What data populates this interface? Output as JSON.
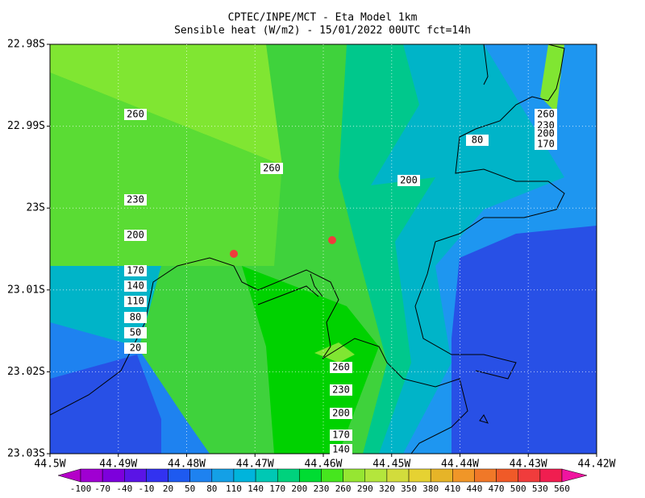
{
  "title": {
    "line1": "CPTEC/INPE/MCT -  Eta Model 1km",
    "line2": "Sensible heat (W/m2) - 15/01/2022 00UTC fct=14h"
  },
  "lat_ticks": [
    "22.98S",
    "22.99S",
    "23S",
    "23.01S",
    "23.02S",
    "23.03S"
  ],
  "lon_ticks": [
    "44.5W",
    "44.49W",
    "44.48W",
    "44.47W",
    "44.46W",
    "44.45W",
    "44.44W",
    "44.43W",
    "44.42W"
  ],
  "contour_labels": [
    "260",
    "260",
    "230",
    "200",
    "170",
    "140",
    "110",
    "80",
    "50",
    "20",
    "200",
    "80",
    "260",
    "230",
    "200",
    "170",
    "260",
    "230",
    "200",
    "170",
    "140"
  ],
  "colorbar": {
    "levels": [
      -100,
      -70,
      -40,
      -10,
      20,
      50,
      80,
      110,
      140,
      170,
      200,
      230,
      260,
      290,
      320,
      350,
      380,
      410,
      440,
      470,
      500,
      530,
      560
    ],
    "colors": [
      "#b400c8",
      "#a000d2",
      "#7d00dc",
      "#5a14e6",
      "#3232f0",
      "#1e5af0",
      "#1e82f0",
      "#14a0e6",
      "#00b4dc",
      "#00c8b4",
      "#00d27d",
      "#00dc32",
      "#46e61e",
      "#96e632",
      "#b4e63c",
      "#d2dc3c",
      "#e6d232",
      "#e6b428",
      "#f09628",
      "#f07828",
      "#f05a28",
      "#f03c3c",
      "#f01e50",
      "#f014a0"
    ]
  }
}
